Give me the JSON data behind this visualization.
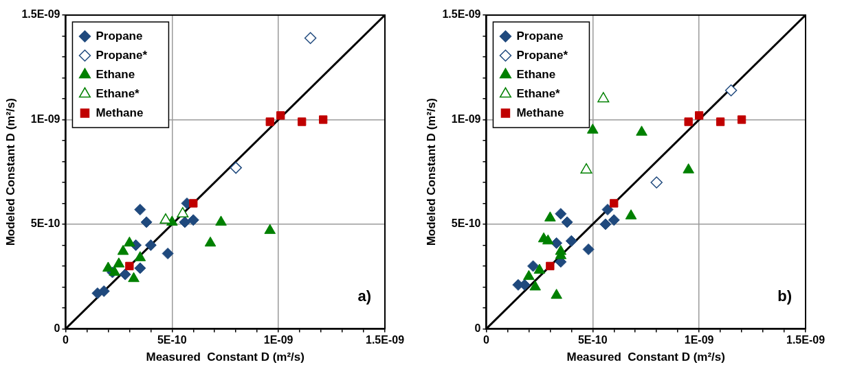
{
  "chart_data": [
    {
      "type": "scatter",
      "xlabel": "Measured  Constant D (m²/s)",
      "ylabel": "Modeled Constant D (m²/s)",
      "xlim": [
        0,
        1.5e-09
      ],
      "ylim": [
        0,
        1.5e-09
      ],
      "xticks": [
        0,
        {
          "value": 1e-10,
          "label": null
        },
        {
          "value": 2e-10,
          "label": null
        },
        {
          "value": 3e-10,
          "label": null
        },
        {
          "value": 4e-10,
          "label": null
        },
        {
          "value": 5e-10,
          "label": "5E-10"
        },
        {
          "value": 6e-10,
          "label": null
        },
        {
          "value": 7e-10,
          "label": null
        },
        {
          "value": 8e-10,
          "label": null
        },
        {
          "value": 9e-10,
          "label": null
        },
        {
          "value": 1e-09,
          "label": "1E-09"
        },
        {
          "value": 1.1e-09,
          "label": null
        },
        {
          "value": 1.2e-09,
          "label": null
        },
        {
          "value": 1.3e-09,
          "label": null
        },
        {
          "value": 1.4e-09,
          "label": null
        },
        {
          "value": 1.5e-09,
          "label": "1.5E-09"
        }
      ],
      "yticks": [
        0,
        {
          "value": 1e-10,
          "label": null
        },
        {
          "value": 2e-10,
          "label": null
        },
        {
          "value": 3e-10,
          "label": null
        },
        {
          "value": 4e-10,
          "label": null
        },
        {
          "value": 5e-10,
          "label": "5E-10"
        },
        {
          "value": 6e-10,
          "label": null
        },
        {
          "value": 7e-10,
          "label": null
        },
        {
          "value": 8e-10,
          "label": null
        },
        {
          "value": 9e-10,
          "label": null
        },
        {
          "value": 1e-09,
          "label": "1E-09"
        },
        {
          "value": 1.1e-09,
          "label": null
        },
        {
          "value": 1.2e-09,
          "label": null
        },
        {
          "value": 1.3e-09,
          "label": null
        },
        {
          "value": 1.4e-09,
          "label": null
        },
        {
          "value": 1.5e-09,
          "label": "1.5E-09"
        }
      ],
      "grid": true,
      "legend": "top left",
      "annotations": [
        "a)"
      ],
      "series": [
        {
          "type": "line",
          "color": "#000000",
          "marker": "none",
          "x": [
            0,
            1.5e-09
          ],
          "values": [
            0,
            1.5e-09
          ]
        },
        {
          "name": "Propane",
          "color": "#1f497d",
          "marker": "diamond",
          "x": [
            1.5e-10,
            1.8e-10,
            3.5e-10,
            3.8e-10,
            3.3e-10,
            4e-10,
            4.8e-10,
            3.5e-10,
            2.8e-10,
            2.2e-10,
            5.6e-10,
            6e-10,
            5.7e-10
          ],
          "values": [
            1.7e-10,
            1.8e-10,
            5.7e-10,
            5.1e-10,
            4e-10,
            4e-10,
            3.6e-10,
            2.9e-10,
            2.6e-10,
            2.7e-10,
            5.1e-10,
            5.2e-10,
            6e-10
          ]
        },
        {
          "name": "Propane*",
          "color": "#1f497d",
          "marker": "diamond-open",
          "x": [
            8e-10,
            1.15e-09
          ],
          "values": [
            7.7e-10,
            1.39e-09
          ]
        },
        {
          "name": "Ethane",
          "color": "#008000",
          "marker": "triangle",
          "x": [
            5e-10,
            7.3e-10,
            6.8e-10,
            3e-10,
            2.7e-10,
            3.5e-10,
            2.5e-10,
            2e-10,
            2.3e-10,
            3.2e-10,
            9.6e-10
          ],
          "values": [
            5.1e-10,
            5.1e-10,
            4.1e-10,
            4.1e-10,
            3.7e-10,
            3.4e-10,
            3.1e-10,
            2.9e-10,
            2.7e-10,
            2.4e-10,
            4.7e-10
          ]
        },
        {
          "name": "Ethane*",
          "color": "#008000",
          "marker": "triangle-open",
          "x": [
            4.7e-10,
            5.5e-10
          ],
          "values": [
            5.2e-10,
            5.5e-10
          ]
        },
        {
          "name": "Methane",
          "color": "#c00000",
          "marker": "square",
          "x": [
            3e-10,
            6e-10,
            9.6e-10,
            1.01e-09,
            1.11e-09,
            1.21e-09
          ],
          "values": [
            3e-10,
            6e-10,
            9.9e-10,
            1.02e-09,
            9.9e-10,
            1e-09
          ]
        }
      ]
    },
    {
      "type": "scatter",
      "xlabel": "Measured  Constant D (m²/s)",
      "ylabel": "Modeled Constant D (m²/s)",
      "xlim": [
        0,
        1.5e-09
      ],
      "ylim": [
        0,
        1.5e-09
      ],
      "xticks": [
        0,
        {
          "value": 1e-10,
          "label": null
        },
        {
          "value": 2e-10,
          "label": null
        },
        {
          "value": 3e-10,
          "label": null
        },
        {
          "value": 4e-10,
          "label": null
        },
        {
          "value": 5e-10,
          "label": "5E-10"
        },
        {
          "value": 6e-10,
          "label": null
        },
        {
          "value": 7e-10,
          "label": null
        },
        {
          "value": 8e-10,
          "label": null
        },
        {
          "value": 9e-10,
          "label": null
        },
        {
          "value": 1e-09,
          "label": "1E-09"
        },
        {
          "value": 1.1e-09,
          "label": null
        },
        {
          "value": 1.2e-09,
          "label": null
        },
        {
          "value": 1.3e-09,
          "label": null
        },
        {
          "value": 1.4e-09,
          "label": null
        },
        {
          "value": 1.5e-09,
          "label": "1.5E-09"
        }
      ],
      "yticks": [
        0,
        {
          "value": 1e-10,
          "label": null
        },
        {
          "value": 2e-10,
          "label": null
        },
        {
          "value": 3e-10,
          "label": null
        },
        {
          "value": 4e-10,
          "label": null
        },
        {
          "value": 5e-10,
          "label": "5E-10"
        },
        {
          "value": 6e-10,
          "label": null
        },
        {
          "value": 7e-10,
          "label": null
        },
        {
          "value": 8e-10,
          "label": null
        },
        {
          "value": 9e-10,
          "label": null
        },
        {
          "value": 1e-09,
          "label": "1E-09"
        },
        {
          "value": 1.1e-09,
          "label": null
        },
        {
          "value": 1.2e-09,
          "label": null
        },
        {
          "value": 1.3e-09,
          "label": null
        },
        {
          "value": 1.4e-09,
          "label": null
        },
        {
          "value": 1.5e-09,
          "label": "1.5E-09"
        }
      ],
      "grid": true,
      "legend": "top left",
      "annotations": [
        "b)"
      ],
      "series": [
        {
          "type": "line",
          "color": "#000000",
          "marker": "none",
          "x": [
            0,
            1.5e-09
          ],
          "values": [
            0,
            1.5e-09
          ]
        },
        {
          "name": "Propane",
          "color": "#1f497d",
          "marker": "diamond",
          "x": [
            1.5e-10,
            1.8e-10,
            2.2e-10,
            3.5e-10,
            3.8e-10,
            3.3e-10,
            4e-10,
            4.8e-10,
            3.5e-10,
            5.6e-10,
            6e-10,
            5.7e-10
          ],
          "values": [
            2.1e-10,
            2.1e-10,
            3e-10,
            5.5e-10,
            5.1e-10,
            4.1e-10,
            4.2e-10,
            3.8e-10,
            3.2e-10,
            5e-10,
            5.2e-10,
            5.7e-10
          ]
        },
        {
          "name": "Propane*",
          "color": "#1f497d",
          "marker": "diamond-open",
          "x": [
            8e-10,
            1.15e-09
          ],
          "values": [
            7e-10,
            1.14e-09
          ]
        },
        {
          "name": "Ethane",
          "color": "#008000",
          "marker": "triangle",
          "x": [
            5e-10,
            7.3e-10,
            9.5e-10,
            6.8e-10,
            3e-10,
            2.7e-10,
            2.9e-10,
            3.5e-10,
            3.5e-10,
            2.5e-10,
            2e-10,
            2.3e-10,
            3.3e-10
          ],
          "values": [
            9.5e-10,
            9.4e-10,
            7.6e-10,
            5.4e-10,
            5.3e-10,
            4.3e-10,
            4.2e-10,
            3.7e-10,
            3.5e-10,
            2.8e-10,
            2.5e-10,
            2e-10,
            1.6e-10
          ]
        },
        {
          "name": "Ethane*",
          "color": "#008000",
          "marker": "triangle-open",
          "x": [
            5.5e-10,
            4.7e-10
          ],
          "values": [
            1.1e-09,
            7.6e-10
          ]
        },
        {
          "name": "Methane",
          "color": "#c00000",
          "marker": "square",
          "x": [
            3e-10,
            6e-10,
            9.5e-10,
            1e-09,
            1.1e-09,
            1.2e-09
          ],
          "values": [
            3e-10,
            6e-10,
            9.9e-10,
            1.02e-09,
            9.9e-10,
            1e-09
          ]
        }
      ]
    }
  ]
}
